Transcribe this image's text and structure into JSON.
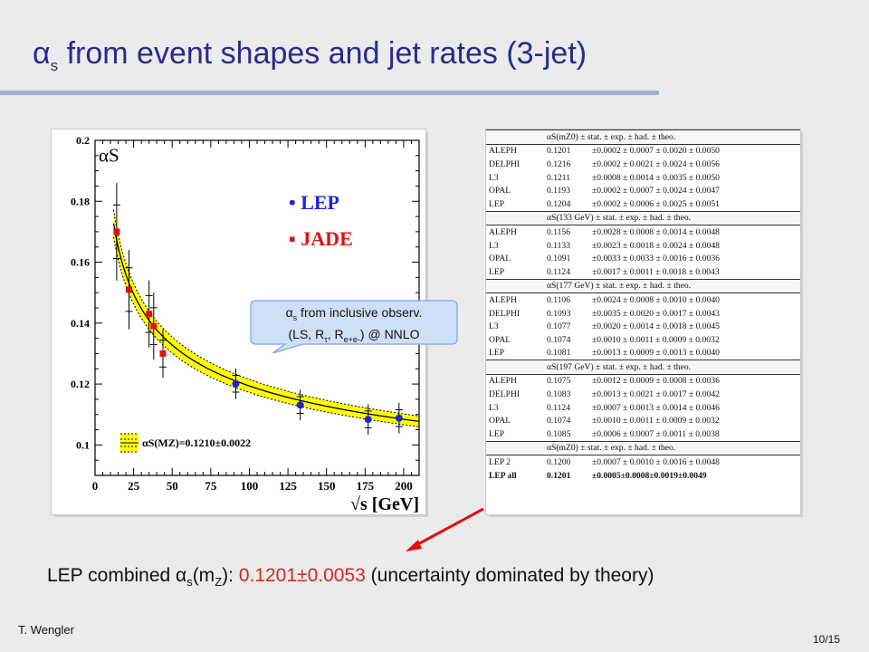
{
  "title": {
    "alpha": "α",
    "sub": "s",
    "rest": " from event shapes and jet rates (3-jet)"
  },
  "colors": {
    "title": "#2a2a8c",
    "rule": "#9db1d7",
    "lep": "#1e24d6",
    "jade": "#e01010",
    "band": "#ffff00",
    "arrow": "#e01010",
    "highlight": "#d42a1c"
  },
  "chart_data": {
    "type": "scatter",
    "ylabel": "αS",
    "xlabel": "√s [GeV]",
    "xlim": [
      0,
      210
    ],
    "ylim": [
      0.09,
      0.2
    ],
    "xticks": [
      0,
      25,
      50,
      75,
      100,
      125,
      150,
      175,
      200
    ],
    "yticks": [
      0.1,
      0.12,
      0.14,
      0.16,
      0.18,
      0.2
    ],
    "legend": [
      {
        "marker": "•",
        "label": "LEP"
      },
      {
        "marker": "▪",
        "label": "JADE"
      }
    ],
    "band_label": "αS(MZ)=0.1210±0.0022",
    "series": [
      {
        "name": "LEP",
        "x": [
          91.2,
          133,
          177,
          197
        ],
        "y": [
          0.1201,
          0.1131,
          0.1084,
          0.1088
        ],
        "yerr": [
          0.005,
          0.005,
          0.005,
          0.005
        ]
      },
      {
        "name": "JADE",
        "x": [
          14,
          22,
          35,
          38,
          44
        ],
        "y": [
          0.17,
          0.151,
          0.143,
          0.139,
          0.13
        ],
        "yerr": [
          0.016,
          0.013,
          0.011,
          0.011,
          0.008
        ]
      }
    ]
  },
  "callout": {
    "line1_alpha": "α",
    "line1_sub": "s",
    "line1_rest": " from inclusive observ.",
    "line2_a": "(LS, R",
    "line2_tau": "τ",
    "line2_b": ", R",
    "line2_sub": "e+e-",
    "line2_c": ") @ NNLO"
  },
  "table": {
    "blocks": [
      {
        "header": [
          "αS(mZ0)",
          "± stat. ± exp. ± had. ± theo."
        ],
        "rows": [
          [
            "ALEPH",
            "0.1201",
            "±0.0002 ± 0.0007 ± 0.0020 ± 0.0050"
          ],
          [
            "DELPHI",
            "0.1216",
            "±0.0002 ± 0.0021 ± 0.0024 ± 0.0056"
          ],
          [
            "L3",
            "0.1211",
            "±0.0008 ± 0.0014 ± 0.0035 ± 0.0050"
          ],
          [
            "OPAL",
            "0.1193",
            "±0.0002 ± 0.0007 ± 0.0024 ± 0.0047"
          ],
          [
            "LEP",
            "0.1204",
            "±0.0002 ± 0.0006 ± 0.0025 ± 0.0051"
          ]
        ]
      },
      {
        "header": [
          "αS(133 GeV)",
          "± stat. ± exp. ± had. ± theo."
        ],
        "rows": [
          [
            "ALEPH",
            "0.1156",
            "±0.0028 ± 0.0008 ± 0.0014 ± 0.0048"
          ],
          [
            "L3",
            "0.1133",
            "±0.0023 ± 0.0018 ± 0.0024 ± 0.0048"
          ],
          [
            "OPAL",
            "0.1091",
            "±0.0033 ± 0.0033 ± 0.0016 ± 0.0036"
          ],
          [
            "LEP",
            "0.1124",
            "±0.0017 ± 0.0011 ± 0.0018 ± 0.0043"
          ]
        ]
      },
      {
        "header": [
          "αS(177 GeV)",
          "± stat. ± exp. ± had. ± theo."
        ],
        "rows": [
          [
            "ALEPH",
            "0.1106",
            "±0.0024 ± 0.0008 ± 0.0010 ± 0.0040"
          ],
          [
            "DELPHI",
            "0.1093",
            "±0.0035 ± 0.0020 ± 0.0017 ± 0.0043"
          ],
          [
            "L3",
            "0.1077",
            "±0.0020 ± 0.0014 ± 0.0018 ± 0.0045"
          ],
          [
            "OPAL",
            "0.1074",
            "±0.0010 ± 0.0011 ± 0.0009 ± 0.0032"
          ],
          [
            "LEP",
            "0.1081",
            "±0.0013 ± 0.0009 ± 0.0013 ± 0.0040"
          ]
        ]
      },
      {
        "header": [
          "αS(197 GeV)",
          "± stat. ± exp. ± had. ± theo."
        ],
        "rows": [
          [
            "ALEPH",
            "0.1075",
            "±0.0012 ± 0.0009 ± 0.0008 ± 0.0036"
          ],
          [
            "DELPHI",
            "0.1083",
            "±0.0013 ± 0.0021 ± 0.0017 ± 0.0042"
          ],
          [
            "L3",
            "0.1124",
            "±0.0007 ± 0.0013 ± 0.0014 ± 0.0046"
          ],
          [
            "OPAL",
            "0.1074",
            "±0.0010 ± 0.0011 ± 0.0009 ± 0.0032"
          ],
          [
            "LEP",
            "0.1085",
            "±0.0006 ± 0.0007 ± 0.0011 ± 0.0038"
          ]
        ]
      },
      {
        "header": [
          "αS(mZ0)",
          "± stat. ± exp. ± had. ± theo."
        ],
        "rows": [
          [
            "LEP 2",
            "0.1200",
            "±0.0007 ± 0.0010 ± 0.0016 ± 0.0048"
          ],
          [
            "LEP all",
            "0.1201",
            "±0.0005±0.0008±0.0019±0.0049"
          ]
        ]
      }
    ]
  },
  "bottom": {
    "a": "LEP combined ",
    "alpha": "α",
    "s": "s",
    "b": "(m",
    "z": "Z",
    "c": "): ",
    "value": "0.1201±0.0053",
    "d": " (uncertainty dominated by theory)"
  },
  "footer": {
    "author": "T. Wengler",
    "page": "10/15"
  }
}
